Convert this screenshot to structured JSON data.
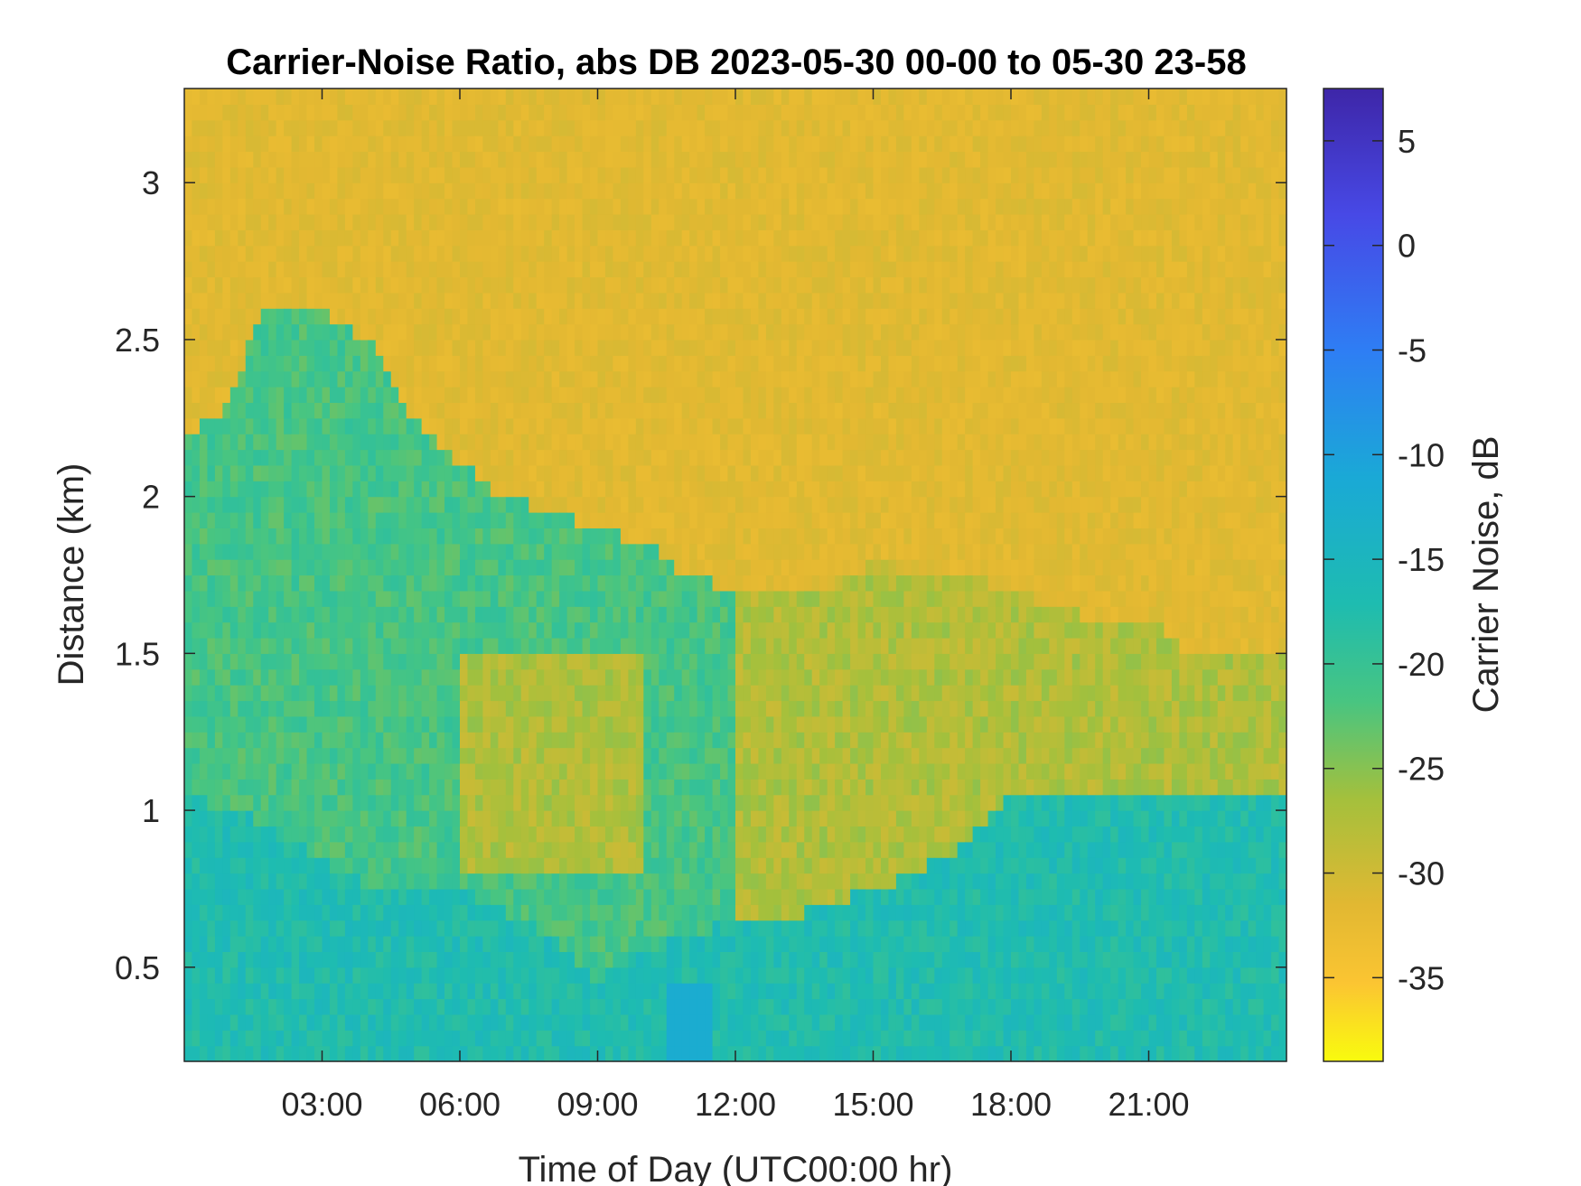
{
  "chart_data": {
    "type": "heatmap",
    "title": "Carrier-Noise Ratio, abs DB 2023-05-30 00-00 to 05-30 23-58",
    "xlabel": "Time of Day (UTC00:00 hr)",
    "ylabel": "Distance (km)",
    "colorbar_label": "Carrier Noise, dB",
    "xlim_hours": [
      0,
      24
    ],
    "ylim_km": [
      0.2,
      3.3
    ],
    "clim_db": [
      7.5,
      -39
    ],
    "colormap": "parula (reversed: yellow at low dB, dark blue at high dB)",
    "x_ticks": [
      {
        "value": 3,
        "label": "03:00"
      },
      {
        "value": 6,
        "label": "06:00"
      },
      {
        "value": 9,
        "label": "09:00"
      },
      {
        "value": 12,
        "label": "12:00"
      },
      {
        "value": 15,
        "label": "15:00"
      },
      {
        "value": 18,
        "label": "18:00"
      },
      {
        "value": 21,
        "label": "21:00"
      }
    ],
    "y_ticks": [
      {
        "value": 0.5,
        "label": "0.5"
      },
      {
        "value": 1,
        "label": "1"
      },
      {
        "value": 1.5,
        "label": "1.5"
      },
      {
        "value": 2,
        "label": "2"
      },
      {
        "value": 2.5,
        "label": "2.5"
      },
      {
        "value": 3,
        "label": "3"
      }
    ],
    "colorbar_ticks": [
      {
        "value": 5,
        "label": "5"
      },
      {
        "value": 0,
        "label": "0"
      },
      {
        "value": -5,
        "label": "-5"
      },
      {
        "value": -10,
        "label": "-10"
      },
      {
        "value": -15,
        "label": "-15"
      },
      {
        "value": -20,
        "label": "-20"
      },
      {
        "value": -25,
        "label": "-25"
      },
      {
        "value": -30,
        "label": "-30"
      },
      {
        "value": -35,
        "label": "-35"
      }
    ],
    "background_db": -31,
    "boundary_layer_top_km": [
      {
        "hour": 0,
        "top": 2.2
      },
      {
        "hour": 1,
        "top": 2.3
      },
      {
        "hour": 1.7,
        "top": 2.6
      },
      {
        "hour": 3,
        "top": 2.6
      },
      {
        "hour": 4,
        "top": 2.5
      },
      {
        "hour": 5,
        "top": 2.25
      },
      {
        "hour": 6,
        "top": 2.1
      },
      {
        "hour": 7,
        "top": 2.0
      },
      {
        "hour": 8,
        "top": 1.95
      },
      {
        "hour": 9,
        "top": 1.9
      },
      {
        "hour": 10,
        "top": 1.85
      },
      {
        "hour": 11,
        "top": 1.75
      },
      {
        "hour": 12,
        "top": 1.7
      },
      {
        "hour": 13,
        "top": 1.7
      },
      {
        "hour": 14,
        "top": 1.7
      },
      {
        "hour": 15,
        "top": 1.8
      },
      {
        "hour": 16,
        "top": 1.75
      },
      {
        "hour": 17,
        "top": 1.75
      },
      {
        "hour": 18,
        "top": 1.7
      },
      {
        "hour": 19,
        "top": 1.65
      },
      {
        "hour": 20,
        "top": 1.6
      },
      {
        "hour": 21,
        "top": 1.6
      },
      {
        "hour": 22,
        "top": 1.5
      },
      {
        "hour": 23,
        "top": 1.5
      },
      {
        "hour": 24,
        "top": 1.5
      }
    ],
    "near_surface_top_km": [
      {
        "hour": 0,
        "top": 1.05
      },
      {
        "hour": 2,
        "top": 0.95
      },
      {
        "hour": 4,
        "top": 0.75
      },
      {
        "hour": 6,
        "top": 0.75
      },
      {
        "hour": 8,
        "top": 0.6
      },
      {
        "hour": 9,
        "top": 0.45
      },
      {
        "hour": 10,
        "top": 0.55
      },
      {
        "hour": 11,
        "top": 0.6
      },
      {
        "hour": 12,
        "top": 0.65
      },
      {
        "hour": 13,
        "top": 0.65
      },
      {
        "hour": 14,
        "top": 0.7
      },
      {
        "hour": 15,
        "top": 0.75
      },
      {
        "hour": 16,
        "top": 0.8
      },
      {
        "hour": 17,
        "top": 0.9
      },
      {
        "hour": 18,
        "top": 1.05
      },
      {
        "hour": 19,
        "top": 1.05
      },
      {
        "hour": 20,
        "top": 1.05
      },
      {
        "hour": 21,
        "top": 1.05
      },
      {
        "hour": 22,
        "top": 1.05
      },
      {
        "hour": 23,
        "top": 1.05
      },
      {
        "hour": 24,
        "top": 1.05
      }
    ]
  }
}
